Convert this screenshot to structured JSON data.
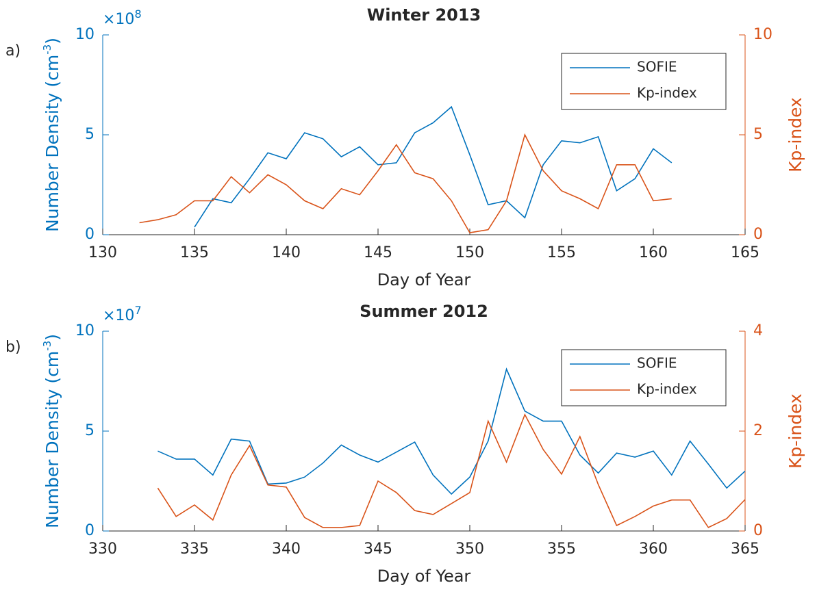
{
  "chart_data": [
    {
      "type": "line",
      "panel_label": "a)",
      "title": "Winter 2013",
      "xlabel": "Day of Year",
      "ylabel": {
        "text": "Number Density (cm",
        "sup": "-3",
        "end": ")"
      },
      "y_exponent": {
        "base": "×10",
        "power": "8"
      },
      "y2label": "Kp-index",
      "xlim": [
        130,
        165
      ],
      "xticks": [
        130,
        135,
        140,
        145,
        150,
        155,
        160,
        165
      ],
      "ylim": [
        0,
        10
      ],
      "yticks": [
        0,
        5,
        10
      ],
      "y2lim": [
        0,
        10
      ],
      "y2ticks": [
        0,
        5,
        10
      ],
      "y_color": "#0072bd",
      "y2_color": "#d95319",
      "legend": "upper right",
      "grid": false,
      "series": [
        {
          "name": "SOFIE",
          "color": "#0072bd",
          "x": [
            135,
            136,
            137,
            138,
            139,
            140,
            141,
            142,
            143,
            144,
            145,
            146,
            147,
            148,
            149,
            150,
            151,
            152,
            153,
            154,
            155,
            156,
            157,
            158,
            159,
            160,
            161
          ],
          "values": [
            0.38,
            1.8,
            1.6,
            2.8,
            4.1,
            3.8,
            5.1,
            4.8,
            3.9,
            4.4,
            3.5,
            3.6,
            5.1,
            5.6,
            6.4,
            4.0,
            1.5,
            1.7,
            0.85,
            3.5,
            4.7,
            4.6,
            4.9,
            2.2,
            2.8,
            4.3,
            3.6
          ]
        },
        {
          "name": "Kp-index",
          "color": "#d95319",
          "axis": "y2",
          "x": [
            132,
            133,
            134,
            135,
            136,
            137,
            138,
            139,
            140,
            141,
            142,
            143,
            144,
            145,
            146,
            147,
            148,
            149,
            150,
            151,
            152,
            153,
            154,
            155,
            156,
            157,
            158,
            159,
            160,
            161
          ],
          "values": [
            0.6,
            0.75,
            1.0,
            1.7,
            1.7,
            2.9,
            2.1,
            3.0,
            2.5,
            1.7,
            1.3,
            2.3,
            2.0,
            3.2,
            4.5,
            3.1,
            2.8,
            1.7,
            0.1,
            0.25,
            1.7,
            5.0,
            3.2,
            2.2,
            1.8,
            1.3,
            3.5,
            3.5,
            1.7,
            1.8
          ]
        }
      ]
    },
    {
      "type": "line",
      "panel_label": "b)",
      "title": "Summer 2012",
      "xlabel": "Day of Year",
      "ylabel": {
        "text": "Number Density (cm",
        "sup": "-3",
        "end": ")"
      },
      "y_exponent": {
        "base": "×10",
        "power": "7"
      },
      "y2label": "Kp-index",
      "xlim": [
        330,
        365
      ],
      "xticks": [
        330,
        335,
        340,
        345,
        350,
        355,
        360,
        365
      ],
      "ylim": [
        0,
        10
      ],
      "yticks": [
        0,
        5,
        10
      ],
      "y2lim": [
        0,
        4
      ],
      "y2ticks": [
        0,
        2,
        4
      ],
      "y_color": "#0072bd",
      "y2_color": "#d95319",
      "legend": "upper right",
      "grid": false,
      "series": [
        {
          "name": "SOFIE",
          "color": "#0072bd",
          "x": [
            333,
            334,
            335,
            336,
            337,
            338,
            339,
            340,
            341,
            342,
            343,
            344,
            345,
            346,
            347,
            348,
            349,
            350,
            351,
            352,
            353,
            354,
            355,
            356,
            357,
            358,
            359,
            360,
            361,
            362,
            363,
            364,
            365
          ],
          "values": [
            4.0,
            3.6,
            3.6,
            2.8,
            4.6,
            4.5,
            2.35,
            2.4,
            2.7,
            3.4,
            4.3,
            3.8,
            3.45,
            3.95,
            4.45,
            2.8,
            1.85,
            2.7,
            4.5,
            8.1,
            6.0,
            5.5,
            5.5,
            3.8,
            2.9,
            3.9,
            3.7,
            4.0,
            2.8,
            4.5,
            3.35,
            2.15,
            3.0
          ]
        },
        {
          "name": "Kp-index",
          "color": "#d95319",
          "axis": "y2",
          "x": [
            333,
            334,
            335,
            336,
            337,
            338,
            339,
            340,
            341,
            342,
            343,
            344,
            345,
            346,
            347,
            348,
            349,
            350,
            351,
            352,
            353,
            354,
            355,
            356,
            357,
            358,
            359,
            360,
            361,
            362,
            363,
            364,
            365
          ],
          "values": [
            0.86,
            0.29,
            0.52,
            0.22,
            1.12,
            1.71,
            0.92,
            0.88,
            0.27,
            0.07,
            0.07,
            0.11,
            1.0,
            0.77,
            0.41,
            0.33,
            0.55,
            0.77,
            2.2,
            1.38,
            2.33,
            1.63,
            1.14,
            1.89,
            0.93,
            0.11,
            0.29,
            0.5,
            0.62,
            0.62,
            0.07,
            0.25,
            0.63
          ]
        }
      ]
    }
  ]
}
